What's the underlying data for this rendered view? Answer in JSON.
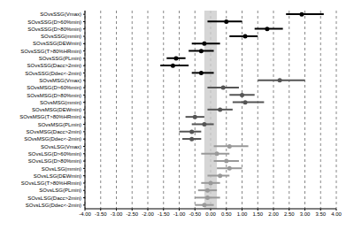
{
  "chart_data": {
    "type": "forest",
    "orientation": "horizontal",
    "grid": true,
    "categories": [
      "SOvsSSG(Vmax)",
      "SOvsSSG(D>60%min)",
      "SOvsSSG(D>80%min)",
      "SOvsSSG(mmin)",
      "SOvsSSG(DEWmin)",
      "SOvsSSG(T>80%HRmin)",
      "SOvsSSG(PLmin)",
      "SOvsSSG(Dacc>2min)",
      "SOvsSSG(Ddec<-2min)",
      "SOvsMSG(Vmax)",
      "SOvsMSG(D>60%min)",
      "SOvsMSG(D>80%min)",
      "SOvsMSG(mmin)",
      "SOvsMSG(DEWmin)",
      "SOvsMSG(T>80%HRmin)",
      "SOvsMSG(PLmin)",
      "SOvsMSG(Dacc>2min)",
      "SOvsMSG(Ddec<-2min)",
      "SOvsLSG(Vmax)",
      "SOvsLSG(D>60%min)",
      "SOvsLSG(D>80%min)",
      "SOvsLSG(mmin)",
      "SOvsLSG(DEWmin)",
      "SOvsLSG(T>80%HRmin)",
      "SOvsLSG(PLmin)",
      "SOvsLSG(Dacc>2min)",
      "SOvsLSG(Ddec<-2min)"
    ],
    "values": [
      2.9,
      0.5,
      1.8,
      1.1,
      -0.2,
      -0.3,
      -1.1,
      -1.2,
      -0.3,
      2.2,
      0.4,
      1.0,
      1.1,
      0.3,
      -0.5,
      -0.2,
      -0.6,
      -0.6,
      0.6,
      0.2,
      0.5,
      0.6,
      0.3,
      0.0,
      -0.1,
      -0.1,
      -0.2
    ],
    "ci_low": [
      2.4,
      -0.1,
      1.4,
      0.6,
      -0.6,
      -0.7,
      -1.4,
      -1.6,
      -0.6,
      1.5,
      -0.1,
      0.6,
      0.7,
      -0.1,
      -0.8,
      -0.6,
      -1.0,
      -0.9,
      0.1,
      -0.3,
      0.1,
      0.2,
      -0.1,
      -0.3,
      -0.4,
      -0.5,
      -0.5
    ],
    "ci_high": [
      3.6,
      1.0,
      2.3,
      1.5,
      0.3,
      0.1,
      -0.8,
      -0.7,
      0.1,
      3.0,
      0.9,
      1.4,
      1.7,
      0.7,
      -0.2,
      0.1,
      -0.3,
      -0.3,
      1.2,
      0.6,
      0.9,
      1.0,
      0.6,
      0.3,
      0.2,
      0.3,
      0.1
    ],
    "colors": [
      "#000000",
      "#000000",
      "#000000",
      "#000000",
      "#000000",
      "#000000",
      "#000000",
      "#000000",
      "#000000",
      "#555555",
      "#555555",
      "#555555",
      "#555555",
      "#555555",
      "#555555",
      "#555555",
      "#555555",
      "#555555",
      "#999999",
      "#999999",
      "#999999",
      "#999999",
      "#999999",
      "#999999",
      "#999999",
      "#999999",
      "#999999"
    ],
    "reference_band": [
      -0.2,
      0.2
    ],
    "xlim": [
      -4,
      4
    ],
    "xticks": [
      {
        "value": -4,
        "label": "-4.00"
      },
      {
        "value": -3.5,
        "label": "-3.50"
      },
      {
        "value": -3,
        "label": "-3.00"
      },
      {
        "value": -2.5,
        "label": "-2.50"
      },
      {
        "value": -2,
        "label": "-2.00"
      },
      {
        "value": -1.5,
        "label": "-1.50"
      },
      {
        "value": -1,
        "label": "-1.00"
      },
      {
        "value": -0.5,
        "label": "-0.50"
      },
      {
        "value": 0,
        "label": "0.00"
      },
      {
        "value": 0.5,
        "label": "0.50"
      },
      {
        "value": 1,
        "label": "1.00"
      },
      {
        "value": 1.5,
        "label": "1.50"
      },
      {
        "value": 2,
        "label": "2.00"
      },
      {
        "value": 2.5,
        "label": "2.50"
      },
      {
        "value": 3,
        "label": "3.00"
      },
      {
        "value": 3.5,
        "label": "3.50"
      },
      {
        "value": 4,
        "label": "4.00"
      }
    ]
  }
}
